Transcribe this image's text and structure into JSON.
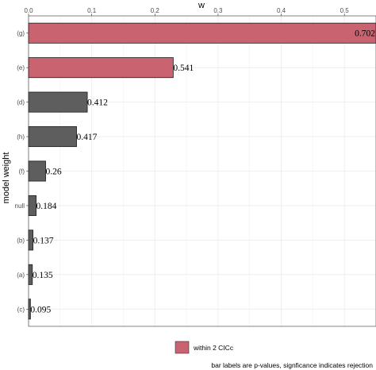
{
  "chart_data": {
    "type": "bar",
    "orientation": "horizontal",
    "xlabel": "w",
    "ylabel": "model weight",
    "xlim": [
      0,
      0.55
    ],
    "xticks": [
      "0.0",
      "0.1",
      "0.2",
      "0.3",
      "0.4",
      "0.5"
    ],
    "x_axis_position": "top",
    "grid": true,
    "categories": [
      "(g)",
      "(e)",
      "(d)",
      "(h)",
      "(f)",
      "null",
      "(b)",
      "(a)",
      "(c)"
    ],
    "values": [
      0.702,
      0.229,
      0.093,
      0.076,
      0.027,
      0.012,
      0.007,
      0.006,
      0.003
    ],
    "bar_labels": [
      "0.702",
      "0.541",
      "0.412",
      "0.417",
      "0.26",
      "0.184",
      "0.137",
      "0.135",
      "0.095"
    ],
    "within_2_cicc": [
      true,
      true,
      false,
      false,
      false,
      false,
      false,
      false,
      false
    ],
    "colors": {
      "within": "#c9636f",
      "outside": "#5e5e5e"
    },
    "legend": {
      "placement": "bottom",
      "entries": [
        {
          "label": "within 2 CICc",
          "color": "#c9636f"
        }
      ]
    },
    "caption": "bar labels are p-values, signficance indicates rejection"
  }
}
